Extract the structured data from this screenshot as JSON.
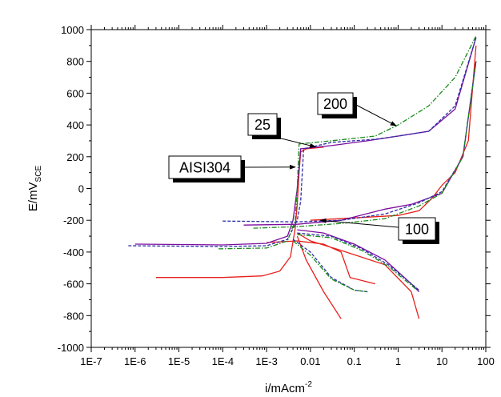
{
  "chart_data": {
    "type": "line",
    "xlabel": "i/mAcm",
    "xlabel_sup": "-2",
    "ylabel": "E/mV",
    "ylabel_sub": "SCE",
    "x_scale": "log",
    "xlim": [
      1e-07,
      100
    ],
    "ylim": [
      -1000,
      1000
    ],
    "x_ticks": [
      1e-07,
      1e-06,
      1e-05,
      0.0001,
      0.001,
      0.01,
      0.1,
      1,
      10,
      100
    ],
    "x_tick_labels": [
      "1E-7",
      "1E-6",
      "1E-5",
      "1E-4",
      "1E-3",
      "0.01",
      "0.1",
      "1",
      "10",
      "100"
    ],
    "y_ticks": [
      -1000,
      -800,
      -600,
      -400,
      -200,
      0,
      200,
      400,
      600,
      800,
      1000
    ],
    "y_tick_labels": [
      "-1000",
      "-800",
      "-600",
      "-400",
      "-200",
      "0",
      "200",
      "400",
      "600",
      "800",
      "1000"
    ],
    "grid": false,
    "series": [
      {
        "color": "#e8201c",
        "style": "solid",
        "points": [
          [
            3e-06,
            -560
          ],
          [
            0.0001,
            -560
          ],
          [
            0.0008,
            -550
          ],
          [
            0.002,
            -520
          ],
          [
            0.0035,
            -430
          ],
          [
            0.0045,
            -250
          ],
          [
            0.005,
            -100
          ],
          [
            0.0055,
            100
          ],
          [
            0.006,
            230
          ],
          [
            0.008,
            250
          ],
          [
            0.02,
            260
          ],
          [
            0.01,
            -200
          ],
          [
            0.1,
            -185
          ],
          [
            1,
            -170
          ],
          [
            3,
            -140
          ],
          [
            6,
            -60
          ],
          [
            10,
            20
          ],
          [
            20,
            100
          ],
          [
            40,
            300
          ],
          [
            60,
            900
          ],
          [
            0.005,
            -280
          ],
          [
            0.01,
            -330
          ],
          [
            0.05,
            -390
          ],
          [
            0.5,
            -480
          ],
          [
            2,
            -650
          ],
          [
            3,
            -820
          ],
          [
            0.005,
            -300
          ],
          [
            0.008,
            -450
          ],
          [
            0.02,
            -650
          ],
          [
            0.05,
            -820
          ],
          [
            0.001,
            -340
          ],
          [
            0.005,
            -330
          ],
          [
            0.02,
            -350
          ],
          [
            0.05,
            -400
          ],
          [
            0.08,
            -560
          ],
          [
            0.3,
            -600
          ]
        ]
      },
      {
        "color": "#7b0e9e",
        "style": "solid",
        "points": [
          [
            1e-06,
            -350
          ],
          [
            0.0001,
            -355
          ],
          [
            0.001,
            -345
          ],
          [
            0.003,
            -300
          ],
          [
            0.004,
            -200
          ],
          [
            0.005,
            0
          ],
          [
            0.006,
            250
          ],
          [
            0.03,
            270
          ],
          [
            0.2,
            300
          ],
          [
            1,
            330
          ],
          [
            5,
            360
          ],
          [
            20,
            500
          ],
          [
            60,
            950
          ],
          [
            0.0003,
            -230
          ],
          [
            0.005,
            -225
          ],
          [
            0.05,
            -200
          ],
          [
            0.5,
            -130
          ],
          [
            2,
            -100
          ],
          [
            10,
            -30
          ],
          [
            30,
            200
          ],
          [
            60,
            800
          ],
          [
            0.005,
            -260
          ],
          [
            0.02,
            -280
          ],
          [
            0.1,
            -350
          ],
          [
            0.5,
            -450
          ],
          [
            2,
            -600
          ],
          [
            3,
            -650
          ]
        ]
      },
      {
        "color": "#2d2da8",
        "style": "dashed",
        "points": [
          [
            7e-07,
            -360
          ],
          [
            0.0001,
            -365
          ],
          [
            0.001,
            -360
          ],
          [
            0.003,
            -320
          ],
          [
            0.005,
            -200
          ],
          [
            0.006,
            -80
          ],
          [
            0.007,
            250
          ],
          [
            0.03,
            290
          ],
          [
            0.3,
            310
          ],
          [
            1,
            330
          ],
          [
            5,
            360
          ],
          [
            20,
            520
          ],
          [
            60,
            950
          ],
          [
            0.0001,
            -205
          ],
          [
            0.005,
            -210
          ],
          [
            0.05,
            -200
          ],
          [
            0.5,
            -160
          ],
          [
            3,
            -90
          ],
          [
            10,
            -20
          ],
          [
            30,
            200
          ],
          [
            60,
            800
          ],
          [
            0.005,
            -280
          ],
          [
            0.03,
            -300
          ],
          [
            0.15,
            -380
          ],
          [
            0.6,
            -480
          ],
          [
            3,
            -640
          ],
          [
            0.004,
            -320
          ],
          [
            0.01,
            -400
          ],
          [
            0.03,
            -560
          ],
          [
            0.1,
            -640
          ],
          [
            0.2,
            -650
          ]
        ]
      },
      {
        "color": "#1a8a1a",
        "style": "dashdot",
        "points": [
          [
            8e-05,
            -380
          ],
          [
            0.001,
            -375
          ],
          [
            0.003,
            -330
          ],
          [
            0.0045,
            -200
          ],
          [
            0.005,
            0
          ],
          [
            0.0055,
            280
          ],
          [
            0.03,
            300
          ],
          [
            0.3,
            330
          ],
          [
            1,
            400
          ],
          [
            5,
            520
          ],
          [
            20,
            700
          ],
          [
            60,
            960
          ],
          [
            0.0005,
            -250
          ],
          [
            0.005,
            -240
          ],
          [
            0.05,
            -220
          ],
          [
            0.5,
            -190
          ],
          [
            3,
            -110
          ],
          [
            10,
            -30
          ],
          [
            30,
            200
          ],
          [
            60,
            800
          ],
          [
            0.005,
            -290
          ],
          [
            0.03,
            -310
          ],
          [
            0.15,
            -390
          ],
          [
            0.6,
            -490
          ],
          [
            3,
            -650
          ],
          [
            0.004,
            -330
          ],
          [
            0.01,
            -420
          ],
          [
            0.03,
            -570
          ],
          [
            0.1,
            -640
          ],
          [
            0.2,
            -650
          ]
        ]
      }
    ],
    "annotations": [
      {
        "text": "200"
      },
      {
        "text": "25"
      },
      {
        "text": "AISI304"
      },
      {
        "text": "100"
      }
    ]
  }
}
